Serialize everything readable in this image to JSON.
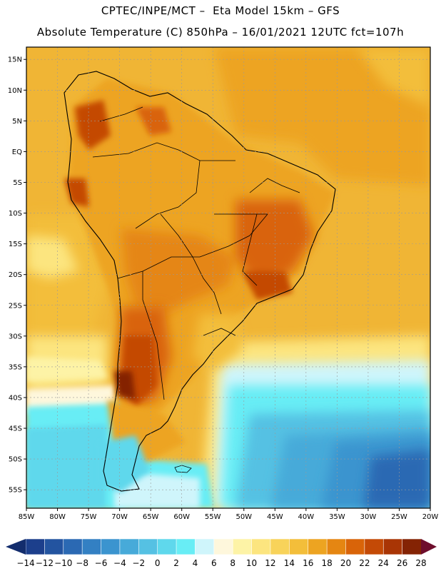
{
  "header": {
    "line1": "CPTEC/INPE/MCT –  Eta Model 15km – GFS",
    "line2": "Absolute Temperature (C) 850hPa – 16/01/2021 12UTC fct=107h"
  },
  "map": {
    "lat_labels": [
      "15N",
      "10N",
      "5N",
      "EQ",
      "5S",
      "10S",
      "15S",
      "20S",
      "25S",
      "30S",
      "35S",
      "40S",
      "45S",
      "50S",
      "55S"
    ],
    "lon_labels": [
      "85W",
      "80W",
      "75W",
      "70W",
      "65W",
      "60W",
      "55W",
      "50W",
      "45W",
      "40W",
      "35W",
      "30W",
      "25W",
      "20W"
    ],
    "lat_range": [
      17,
      -58
    ],
    "lon_range": [
      -85,
      -20
    ]
  },
  "colorbar": {
    "labels": [
      "-14",
      "-12",
      "-10",
      "-8",
      "-6",
      "-4",
      "-2",
      "0",
      "2",
      "4",
      "6",
      "8",
      "10",
      "12",
      "14",
      "16",
      "18",
      "20",
      "22",
      "24",
      "26",
      "28"
    ],
    "colors": [
      "#1c3f8c",
      "#2354a0",
      "#2b69b3",
      "#3380c3",
      "#3b94cf",
      "#47aad9",
      "#55c1e3",
      "#5fd8ec",
      "#68edf5",
      "#cff5fb",
      "#fef7dc",
      "#fdf3a6",
      "#fce57f",
      "#f8d35a",
      "#f3be3a",
      "#eda421",
      "#e58612",
      "#d96409",
      "#c44a06",
      "#a93505",
      "#842304"
    ]
  }
}
